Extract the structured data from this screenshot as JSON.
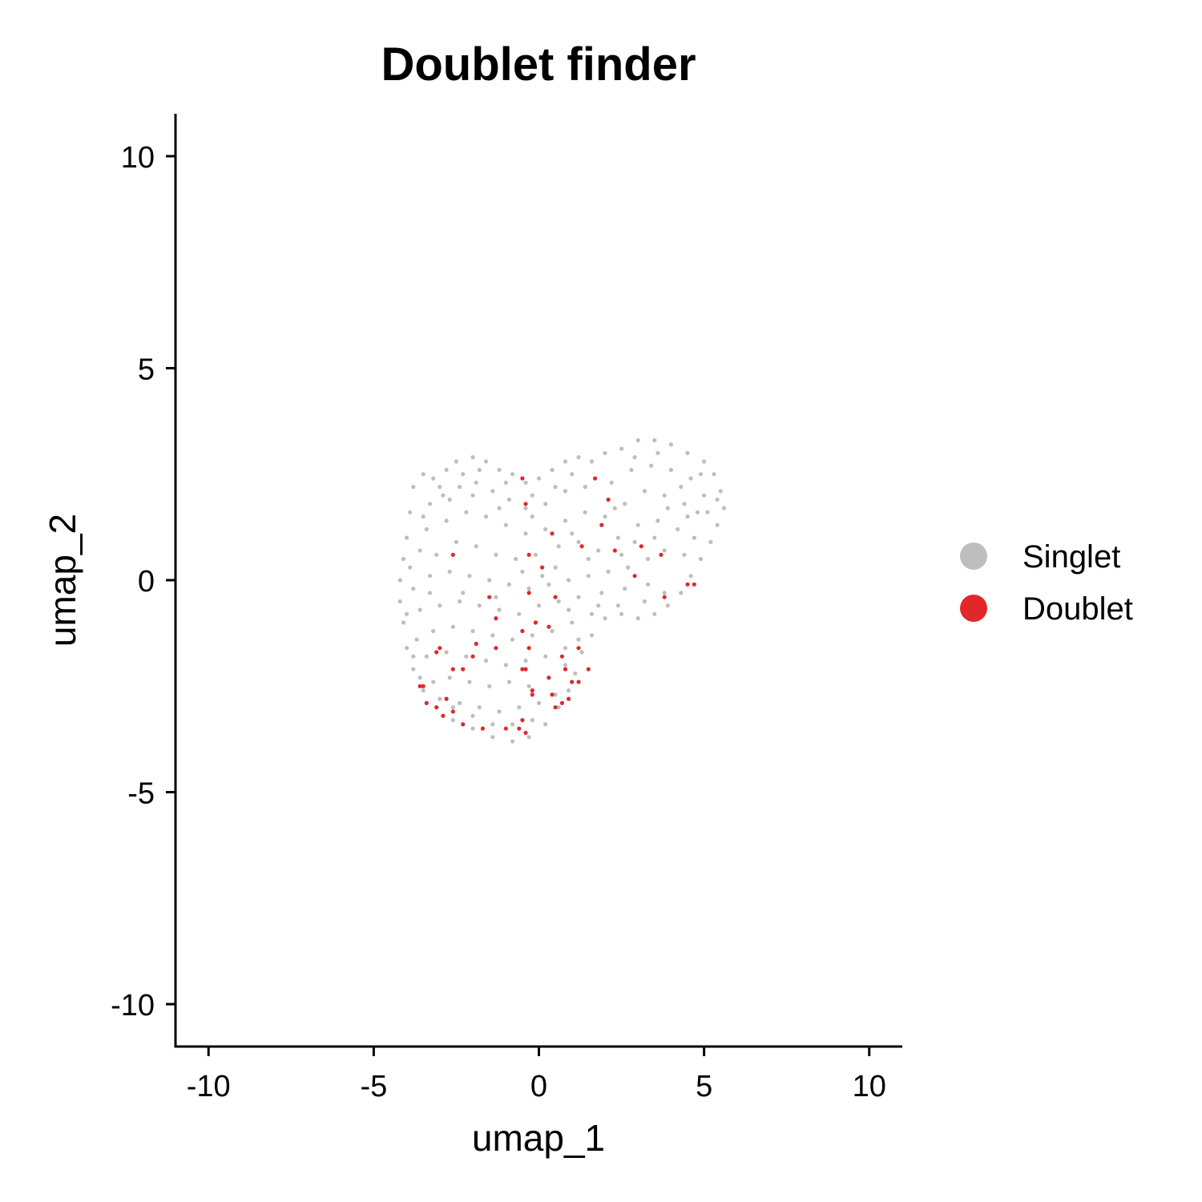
{
  "chart_data": {
    "type": "scatter",
    "title": "Doublet finder",
    "xlabel": "umap_1",
    "ylabel": "umap_2",
    "xlim": [
      -11,
      11
    ],
    "ylim": [
      -11,
      11
    ],
    "xticks": [
      -10,
      -5,
      0,
      5,
      10
    ],
    "yticks": [
      -10,
      -5,
      0,
      5,
      10
    ],
    "xtick_labels": [
      "-10",
      "-5",
      "0",
      "5",
      "10"
    ],
    "ytick_labels": [
      "-10",
      "-5",
      "0",
      "5",
      "10"
    ],
    "grid": false,
    "legend_position": "right",
    "series": [
      {
        "name": "Singlet",
        "color": "#BEBEBE",
        "points": [
          [
            -3.8,
            2.2
          ],
          [
            -3.5,
            2.5
          ],
          [
            -3.2,
            2.4
          ],
          [
            -2.8,
            2.6
          ],
          [
            -2.5,
            2.8
          ],
          [
            -2.0,
            2.9
          ],
          [
            -1.6,
            2.8
          ],
          [
            -1.2,
            2.6
          ],
          [
            -0.8,
            2.5
          ],
          [
            -0.4,
            2.3
          ],
          [
            0.0,
            2.4
          ],
          [
            0.4,
            2.6
          ],
          [
            0.8,
            2.8
          ],
          [
            1.2,
            2.9
          ],
          [
            1.6,
            2.8
          ],
          [
            2.0,
            3.0
          ],
          [
            2.5,
            3.1
          ],
          [
            3.0,
            3.3
          ],
          [
            3.5,
            3.3
          ],
          [
            4.0,
            3.2
          ],
          [
            4.5,
            3.0
          ],
          [
            5.0,
            2.8
          ],
          [
            5.3,
            2.5
          ],
          [
            5.5,
            2.1
          ],
          [
            5.6,
            1.7
          ],
          [
            5.4,
            1.3
          ],
          [
            5.2,
            0.9
          ],
          [
            4.9,
            0.5
          ],
          [
            4.6,
            0.1
          ],
          [
            4.3,
            -0.3
          ],
          [
            3.9,
            -0.6
          ],
          [
            3.5,
            -0.8
          ],
          [
            3.0,
            -0.9
          ],
          [
            2.5,
            -0.8
          ],
          [
            2.0,
            -0.9
          ],
          [
            1.6,
            -1.3
          ],
          [
            1.3,
            -1.7
          ],
          [
            1.1,
            -2.2
          ],
          [
            0.9,
            -2.6
          ],
          [
            0.6,
            -3.0
          ],
          [
            0.2,
            -3.4
          ],
          [
            -0.3,
            -3.7
          ],
          [
            -0.8,
            -3.8
          ],
          [
            -1.4,
            -3.7
          ],
          [
            -2.0,
            -3.5
          ],
          [
            -2.6,
            -3.3
          ],
          [
            -3.1,
            -3.0
          ],
          [
            -3.5,
            -2.6
          ],
          [
            -3.8,
            -2.1
          ],
          [
            -4.0,
            -1.6
          ],
          [
            -4.1,
            -1.0
          ],
          [
            -4.2,
            -0.5
          ],
          [
            -4.2,
            0.0
          ],
          [
            -4.1,
            0.5
          ],
          [
            -4.0,
            1.0
          ],
          [
            -3.9,
            1.6
          ],
          [
            -3.3,
            1.8
          ],
          [
            -2.9,
            2.0
          ],
          [
            -2.4,
            2.2
          ],
          [
            -1.9,
            2.3
          ],
          [
            -1.4,
            2.1
          ],
          [
            -0.9,
            1.9
          ],
          [
            -0.4,
            1.7
          ],
          [
            0.2,
            1.8
          ],
          [
            0.8,
            2.1
          ],
          [
            1.4,
            2.2
          ],
          [
            2.2,
            2.3
          ],
          [
            2.8,
            2.6
          ],
          [
            3.4,
            2.7
          ],
          [
            4.0,
            2.6
          ],
          [
            4.6,
            2.4
          ],
          [
            5.0,
            2.0
          ],
          [
            4.8,
            1.6
          ],
          [
            4.4,
            1.8
          ],
          [
            3.8,
            2.0
          ],
          [
            3.2,
            2.1
          ],
          [
            2.6,
            1.8
          ],
          [
            2.0,
            1.5
          ],
          [
            1.4,
            1.6
          ],
          [
            0.8,
            1.4
          ],
          [
            0.2,
            1.2
          ],
          [
            -0.4,
            1.1
          ],
          [
            -1.0,
            1.3
          ],
          [
            -1.6,
            1.5
          ],
          [
            -2.2,
            1.6
          ],
          [
            -2.8,
            1.4
          ],
          [
            -3.4,
            1.2
          ],
          [
            -3.6,
            0.7
          ],
          [
            -3.1,
            0.6
          ],
          [
            -2.5,
            0.9
          ],
          [
            -1.9,
            0.8
          ],
          [
            -1.3,
            0.6
          ],
          [
            -0.7,
            0.5
          ],
          [
            -0.1,
            0.6
          ],
          [
            0.6,
            0.8
          ],
          [
            1.2,
            0.9
          ],
          [
            1.8,
            0.7
          ],
          [
            2.4,
            1.0
          ],
          [
            3.0,
            1.3
          ],
          [
            3.6,
            1.4
          ],
          [
            4.2,
            1.2
          ],
          [
            4.7,
            1.0
          ],
          [
            4.4,
            0.6
          ],
          [
            3.8,
            0.7
          ],
          [
            3.3,
            0.5
          ],
          [
            2.7,
            0.3
          ],
          [
            2.1,
            0.2
          ],
          [
            1.5,
            0.1
          ],
          [
            0.9,
            0.0
          ],
          [
            0.3,
            -0.1
          ],
          [
            -0.3,
            -0.2
          ],
          [
            -0.9,
            -0.1
          ],
          [
            -1.5,
            0.0
          ],
          [
            -2.1,
            0.1
          ],
          [
            -2.7,
            0.2
          ],
          [
            -3.3,
            0.1
          ],
          [
            -3.8,
            -0.2
          ],
          [
            -3.6,
            -0.7
          ],
          [
            -3.0,
            -0.6
          ],
          [
            -2.4,
            -0.5
          ],
          [
            -1.8,
            -0.6
          ],
          [
            -1.2,
            -0.7
          ],
          [
            -0.6,
            -0.8
          ],
          [
            0.0,
            -0.6
          ],
          [
            0.6,
            -0.5
          ],
          [
            1.2,
            -0.4
          ],
          [
            1.9,
            -0.3
          ],
          [
            2.6,
            -0.2
          ],
          [
            3.3,
            -0.1
          ],
          [
            3.8,
            -0.3
          ],
          [
            3.2,
            -0.5
          ],
          [
            2.4,
            -0.6
          ],
          [
            1.6,
            -0.8
          ],
          [
            1.0,
            -1.0
          ],
          [
            0.4,
            -1.2
          ],
          [
            -0.2,
            -1.3
          ],
          [
            -0.8,
            -1.4
          ],
          [
            -1.4,
            -1.3
          ],
          [
            -2.0,
            -1.2
          ],
          [
            -2.6,
            -1.1
          ],
          [
            -3.2,
            -1.2
          ],
          [
            -3.7,
            -1.4
          ],
          [
            -3.4,
            -1.8
          ],
          [
            -2.8,
            -1.7
          ],
          [
            -2.2,
            -1.8
          ],
          [
            -1.6,
            -1.9
          ],
          [
            -1.0,
            -2.0
          ],
          [
            -0.4,
            -1.9
          ],
          [
            0.2,
            -1.8
          ],
          [
            0.8,
            -1.6
          ],
          [
            1.2,
            -1.4
          ],
          [
            0.8,
            -2.0
          ],
          [
            0.3,
            -2.3
          ],
          [
            -0.3,
            -2.5
          ],
          [
            -0.9,
            -2.4
          ],
          [
            -1.5,
            -2.5
          ],
          [
            -2.1,
            -2.4
          ],
          [
            -2.7,
            -2.3
          ],
          [
            -3.2,
            -2.4
          ],
          [
            -3.0,
            -2.8
          ],
          [
            -2.4,
            -2.9
          ],
          [
            -1.8,
            -3.0
          ],
          [
            -1.2,
            -3.1
          ],
          [
            -0.6,
            -3.0
          ],
          [
            0.0,
            -2.9
          ],
          [
            0.5,
            -2.7
          ],
          [
            -0.2,
            -3.3
          ],
          [
            -0.8,
            -3.4
          ],
          [
            -1.4,
            -3.4
          ],
          [
            -2.0,
            -3.2
          ],
          [
            -2.6,
            -3.0
          ],
          [
            -3.3,
            -0.3
          ],
          [
            -2.3,
            -0.3
          ],
          [
            -1.3,
            -0.4
          ],
          [
            -0.5,
            0.2
          ],
          [
            0.5,
            0.3
          ],
          [
            1.5,
            0.5
          ],
          [
            2.5,
            0.6
          ],
          [
            3.5,
            1.0
          ],
          [
            4.5,
            1.5
          ],
          [
            5.1,
            1.6
          ],
          [
            2.3,
            1.7
          ],
          [
            1.0,
            1.1
          ],
          [
            -0.2,
            1.5
          ],
          [
            -1.2,
            1.7
          ],
          [
            -2.0,
            2.0
          ],
          [
            -2.7,
            1.9
          ],
          [
            -3.5,
            1.5
          ],
          [
            -3.9,
            0.3
          ],
          [
            -4.0,
            -0.8
          ],
          [
            -3.8,
            -1.8
          ],
          [
            -3.6,
            -2.3
          ],
          [
            0.1,
            0.1
          ],
          [
            0.9,
            -0.7
          ],
          [
            1.8,
            -0.6
          ],
          [
            2.9,
            0.9
          ],
          [
            3.9,
            1.7
          ],
          [
            4.3,
            2.2
          ],
          [
            3.6,
            3.0
          ],
          [
            2.9,
            2.9
          ],
          [
            4.9,
            2.5
          ],
          [
            5.4,
            1.9
          ],
          [
            -1.0,
            2.3
          ],
          [
            -0.2,
            2.0
          ],
          [
            0.5,
            2.2
          ],
          [
            1.0,
            2.5
          ],
          [
            -1.8,
            2.6
          ],
          [
            -2.3,
            2.5
          ],
          [
            -3.0,
            2.2
          ]
        ]
      },
      {
        "name": "Doublet",
        "color": "#E0282A",
        "points": [
          [
            -0.5,
            2.4
          ],
          [
            1.7,
            2.4
          ],
          [
            -0.4,
            1.8
          ],
          [
            2.1,
            1.9
          ],
          [
            1.9,
            1.3
          ],
          [
            0.4,
            1.1
          ],
          [
            -2.6,
            0.6
          ],
          [
            -0.3,
            0.6
          ],
          [
            1.3,
            0.8
          ],
          [
            2.3,
            0.7
          ],
          [
            3.1,
            0.8
          ],
          [
            3.7,
            0.6
          ],
          [
            0.1,
            0.3
          ],
          [
            2.9,
            0.1
          ],
          [
            4.5,
            -0.1
          ],
          [
            4.7,
            -0.1
          ],
          [
            3.8,
            -0.4
          ],
          [
            -1.5,
            -0.4
          ],
          [
            -0.3,
            -0.3
          ],
          [
            0.5,
            -0.4
          ],
          [
            -1.3,
            -0.9
          ],
          [
            -0.1,
            -1.0
          ],
          [
            0.3,
            -1.1
          ],
          [
            -0.5,
            -1.2
          ],
          [
            -1.9,
            -1.5
          ],
          [
            -1.3,
            -1.6
          ],
          [
            -0.3,
            -1.6
          ],
          [
            -3.0,
            -1.6
          ],
          [
            -3.1,
            -1.7
          ],
          [
            -2.0,
            -1.8
          ],
          [
            -2.3,
            -2.1
          ],
          [
            -2.6,
            -2.1
          ],
          [
            -0.5,
            -2.1
          ],
          [
            -0.4,
            -2.1
          ],
          [
            0.7,
            -1.8
          ],
          [
            1.2,
            -1.6
          ],
          [
            0.8,
            -2.1
          ],
          [
            1.5,
            -2.1
          ],
          [
            0.3,
            -2.3
          ],
          [
            1.0,
            -2.4
          ],
          [
            1.2,
            -2.4
          ],
          [
            -3.6,
            -2.5
          ],
          [
            -3.5,
            -2.5
          ],
          [
            -0.2,
            -2.6
          ],
          [
            0.4,
            -2.7
          ],
          [
            -2.8,
            -2.8
          ],
          [
            -3.4,
            -2.9
          ],
          [
            -3.1,
            -3.0
          ],
          [
            0.5,
            -3.0
          ],
          [
            0.7,
            -2.9
          ],
          [
            -2.9,
            -3.2
          ],
          [
            -2.6,
            -3.1
          ],
          [
            -0.5,
            -3.3
          ],
          [
            -2.3,
            -3.4
          ],
          [
            -1.7,
            -3.5
          ],
          [
            -1.0,
            -3.5
          ],
          [
            -0.6,
            -3.5
          ],
          [
            -0.4,
            -3.6
          ],
          [
            0.9,
            -2.8
          ],
          [
            -0.2,
            -2.7
          ]
        ]
      }
    ]
  }
}
